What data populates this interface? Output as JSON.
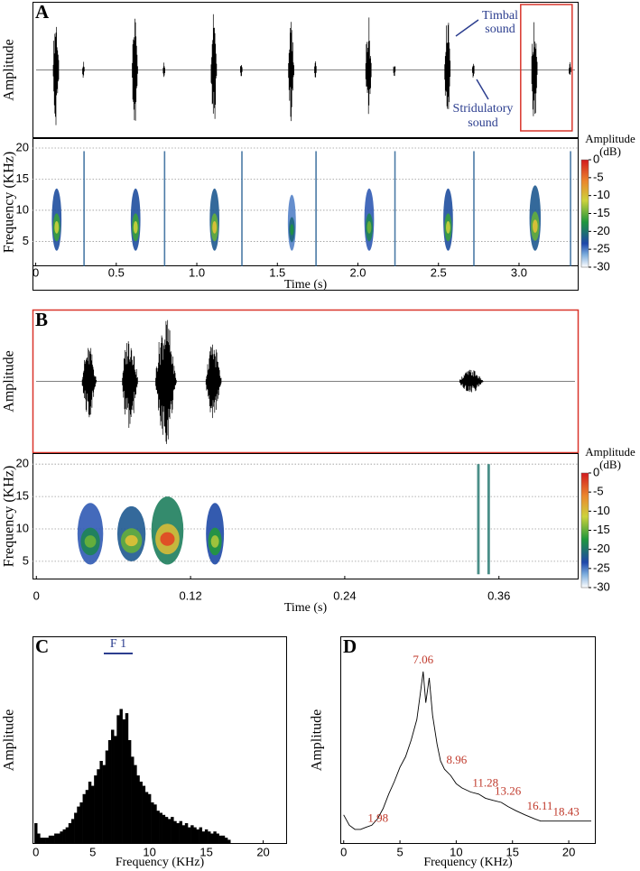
{
  "chart_data": [
    {
      "type": "waveform",
      "panel": "A",
      "ylabel": "Amplitude",
      "x": [
        0.13,
        0.62,
        1.11,
        1.59,
        2.07,
        2.56,
        3.1,
        0.3,
        0.8,
        1.28,
        1.74,
        2.23,
        2.72,
        3.32
      ],
      "durations": [
        0.06,
        0.06,
        0.06,
        0.06,
        0.06,
        0.06,
        0.06,
        0.025,
        0.025,
        0.025,
        0.025,
        0.025,
        0.025,
        0.025
      ],
      "values": [
        0.85,
        0.85,
        0.88,
        0.75,
        0.8,
        0.85,
        0.82,
        0.13,
        0.12,
        0.12,
        0.13,
        0.12,
        0.13,
        0.12
      ],
      "xlim": [
        -0.02,
        3.37
      ],
      "ylim": [
        -1,
        1
      ],
      "color": "#000000",
      "annotations": [
        {
          "lines": [
            "Timbal",
            "sound"
          ]
        },
        {
          "lines": [
            "Stridulatory",
            "sound"
          ]
        }
      ],
      "highlight_color": "#d9352b"
    },
    {
      "type": "spectrogram",
      "ylabel": "Frequency (KHz)",
      "xlabel": "Time (s)",
      "x": [
        0.13,
        0.62,
        1.11,
        1.59,
        2.07,
        2.56,
        3.1,
        0.3,
        0.8,
        1.28,
        1.74,
        2.23,
        2.72,
        3.32
      ],
      "durations": [
        0.06,
        0.06,
        0.06,
        0.05,
        0.06,
        0.06,
        0.07,
        0.004,
        0.004,
        0.004,
        0.004,
        0.004,
        0.004,
        0.004
      ],
      "fmin": [
        3.5,
        3.5,
        3.5,
        3.5,
        3.5,
        3.5,
        3.5,
        1,
        1,
        1,
        1,
        1,
        1,
        1
      ],
      "fmax": [
        13.5,
        13.5,
        13.5,
        12.5,
        13.5,
        13.5,
        14,
        19.5,
        19.5,
        19.5,
        19.5,
        19.5,
        19.5,
        19.5
      ],
      "values": [
        -12,
        -12,
        -10,
        -18,
        -15,
        -12,
        -10,
        -22,
        -22,
        -22,
        -22,
        -22,
        -22,
        -22
      ],
      "xlim": [
        -0.02,
        3.37
      ],
      "xticks": [
        0,
        0.5,
        {
          "value": 1,
          "label": "1.0"
        },
        1.5,
        {
          "value": 2,
          "label": "2.0"
        },
        2.5,
        {
          "value": 3,
          "label": "3.0"
        }
      ],
      "ylim": [
        1,
        21.6
      ],
      "yticks": [
        5,
        10,
        15,
        20
      ],
      "grid": true,
      "clim": [
        -30,
        0
      ],
      "cticks": [
        0,
        -5,
        -10,
        -15,
        -20,
        -25,
        -30
      ],
      "colorbar_label": [
        "Amplitude",
        "(dB)"
      ]
    },
    {
      "type": "waveform",
      "panel": "B",
      "ylabel": "Amplitude",
      "x": [
        0.042,
        0.074,
        0.102,
        0.139,
        0.34
      ],
      "durations": [
        0.018,
        0.02,
        0.026,
        0.02,
        0.03
      ],
      "values": [
        0.5,
        0.7,
        0.9,
        0.55,
        0.17
      ],
      "xlim": [
        -0.003,
        0.422
      ],
      "ylim": [
        -1,
        1
      ],
      "color": "#000000",
      "border_color": "#d9352b"
    },
    {
      "type": "spectrogram",
      "ylabel": "Frequency (KHz)",
      "xlabel": "Time (s)",
      "x": [
        0.042,
        0.074,
        0.102,
        0.139,
        0.344,
        0.352
      ],
      "durations": [
        0.02,
        0.022,
        0.025,
        0.014,
        0.002,
        0.002
      ],
      "fmin": [
        4.5,
        5,
        4.5,
        4.5,
        3,
        3
      ],
      "fmax": [
        14,
        13.5,
        15,
        14,
        20,
        20
      ],
      "values": [
        -15,
        -10,
        -3,
        -13,
        -20,
        -20
      ],
      "xlim": [
        -0.003,
        0.422
      ],
      "xticks": [
        0,
        0.12,
        0.24,
        0.36
      ],
      "ylim": [
        2.2,
        21.7
      ],
      "yticks": [
        5,
        10,
        15,
        20
      ],
      "grid": true,
      "clim": [
        -30,
        0
      ],
      "cticks": [
        0,
        -5,
        -10,
        -15,
        -20,
        -25,
        -30
      ],
      "colorbar_label": [
        "Amplitude",
        "(dB)"
      ]
    },
    {
      "type": "spectrum",
      "panel": "C",
      "ylabel": "Amplitude",
      "xlabel": "Frequency (KHz)",
      "annotation": "F 1",
      "x": [
        0,
        0.25,
        0.5,
        0.75,
        1,
        1.25,
        1.5,
        1.75,
        2,
        2.25,
        2.5,
        2.75,
        3,
        3.25,
        3.5,
        3.75,
        4,
        4.25,
        4.5,
        4.75,
        5,
        5.25,
        5.5,
        5.75,
        6,
        6.25,
        6.5,
        6.75,
        7,
        7.25,
        7.5,
        7.75,
        8,
        8.25,
        8.5,
        8.75,
        9,
        9.25,
        9.5,
        9.75,
        10,
        10.25,
        10.5,
        10.75,
        11,
        11.25,
        11.5,
        11.75,
        12,
        12.25,
        12.5,
        12.75,
        13,
        13.25,
        13.5,
        13.75,
        14,
        14.25,
        14.5,
        14.75,
        15,
        15.25,
        15.5,
        15.75,
        16,
        16.25,
        16.5,
        16.75,
        17
      ],
      "values": [
        0.1,
        0.05,
        0.03,
        0.03,
        0.03,
        0.04,
        0.04,
        0.05,
        0.05,
        0.06,
        0.07,
        0.08,
        0.1,
        0.12,
        0.15,
        0.18,
        0.2,
        0.24,
        0.26,
        0.3,
        0.28,
        0.33,
        0.36,
        0.4,
        0.38,
        0.45,
        0.5,
        0.55,
        0.52,
        0.62,
        0.65,
        0.6,
        0.63,
        0.5,
        0.42,
        0.38,
        0.33,
        0.3,
        0.28,
        0.25,
        0.24,
        0.2,
        0.19,
        0.16,
        0.15,
        0.14,
        0.13,
        0.12,
        0.13,
        0.11,
        0.1,
        0.11,
        0.09,
        0.1,
        0.08,
        0.09,
        0.08,
        0.07,
        0.08,
        0.06,
        0.07,
        0.06,
        0.05,
        0.06,
        0.05,
        0.04,
        0.04,
        0.03,
        0.02
      ],
      "xlim": [
        -0.3,
        22.1
      ],
      "xticks": [
        0,
        5,
        10,
        15,
        20
      ],
      "ylim": [
        0,
        1
      ],
      "color": "#000000"
    },
    {
      "type": "line",
      "panel": "D",
      "ylabel": "Amplitude",
      "xlabel": "Frequency (KHz)",
      "x": [
        0,
        0.5,
        1,
        1.5,
        1.98,
        2.5,
        3,
        3.5,
        4,
        4.5,
        5,
        5.5,
        6,
        6.5,
        6.8,
        7.06,
        7.3,
        7.6,
        7.9,
        8.3,
        8.6,
        8.96,
        9.5,
        10,
        10.5,
        11.28,
        12,
        12.6,
        13.26,
        14,
        14.6,
        15.3,
        16.11,
        17,
        17.5,
        18.43,
        19,
        20,
        21,
        22
      ],
      "values": [
        0.14,
        0.09,
        0.07,
        0.07,
        0.08,
        0.09,
        0.12,
        0.17,
        0.24,
        0.3,
        0.37,
        0.42,
        0.5,
        0.6,
        0.72,
        0.83,
        0.68,
        0.8,
        0.62,
        0.48,
        0.4,
        0.36,
        0.33,
        0.29,
        0.27,
        0.25,
        0.24,
        0.22,
        0.21,
        0.2,
        0.18,
        0.16,
        0.14,
        0.12,
        0.11,
        0.11,
        0.11,
        0.11,
        0.11,
        0.11
      ],
      "peaks": [
        1.98,
        7.06,
        8.96,
        11.28,
        13.26,
        16.11,
        18.43
      ],
      "peak_color": "#c0392b",
      "xlim": [
        -0.3,
        22.4
      ],
      "xticks": [
        0,
        5,
        10,
        15,
        20
      ],
      "ylim": [
        0,
        1
      ],
      "color": "#000000"
    }
  ]
}
